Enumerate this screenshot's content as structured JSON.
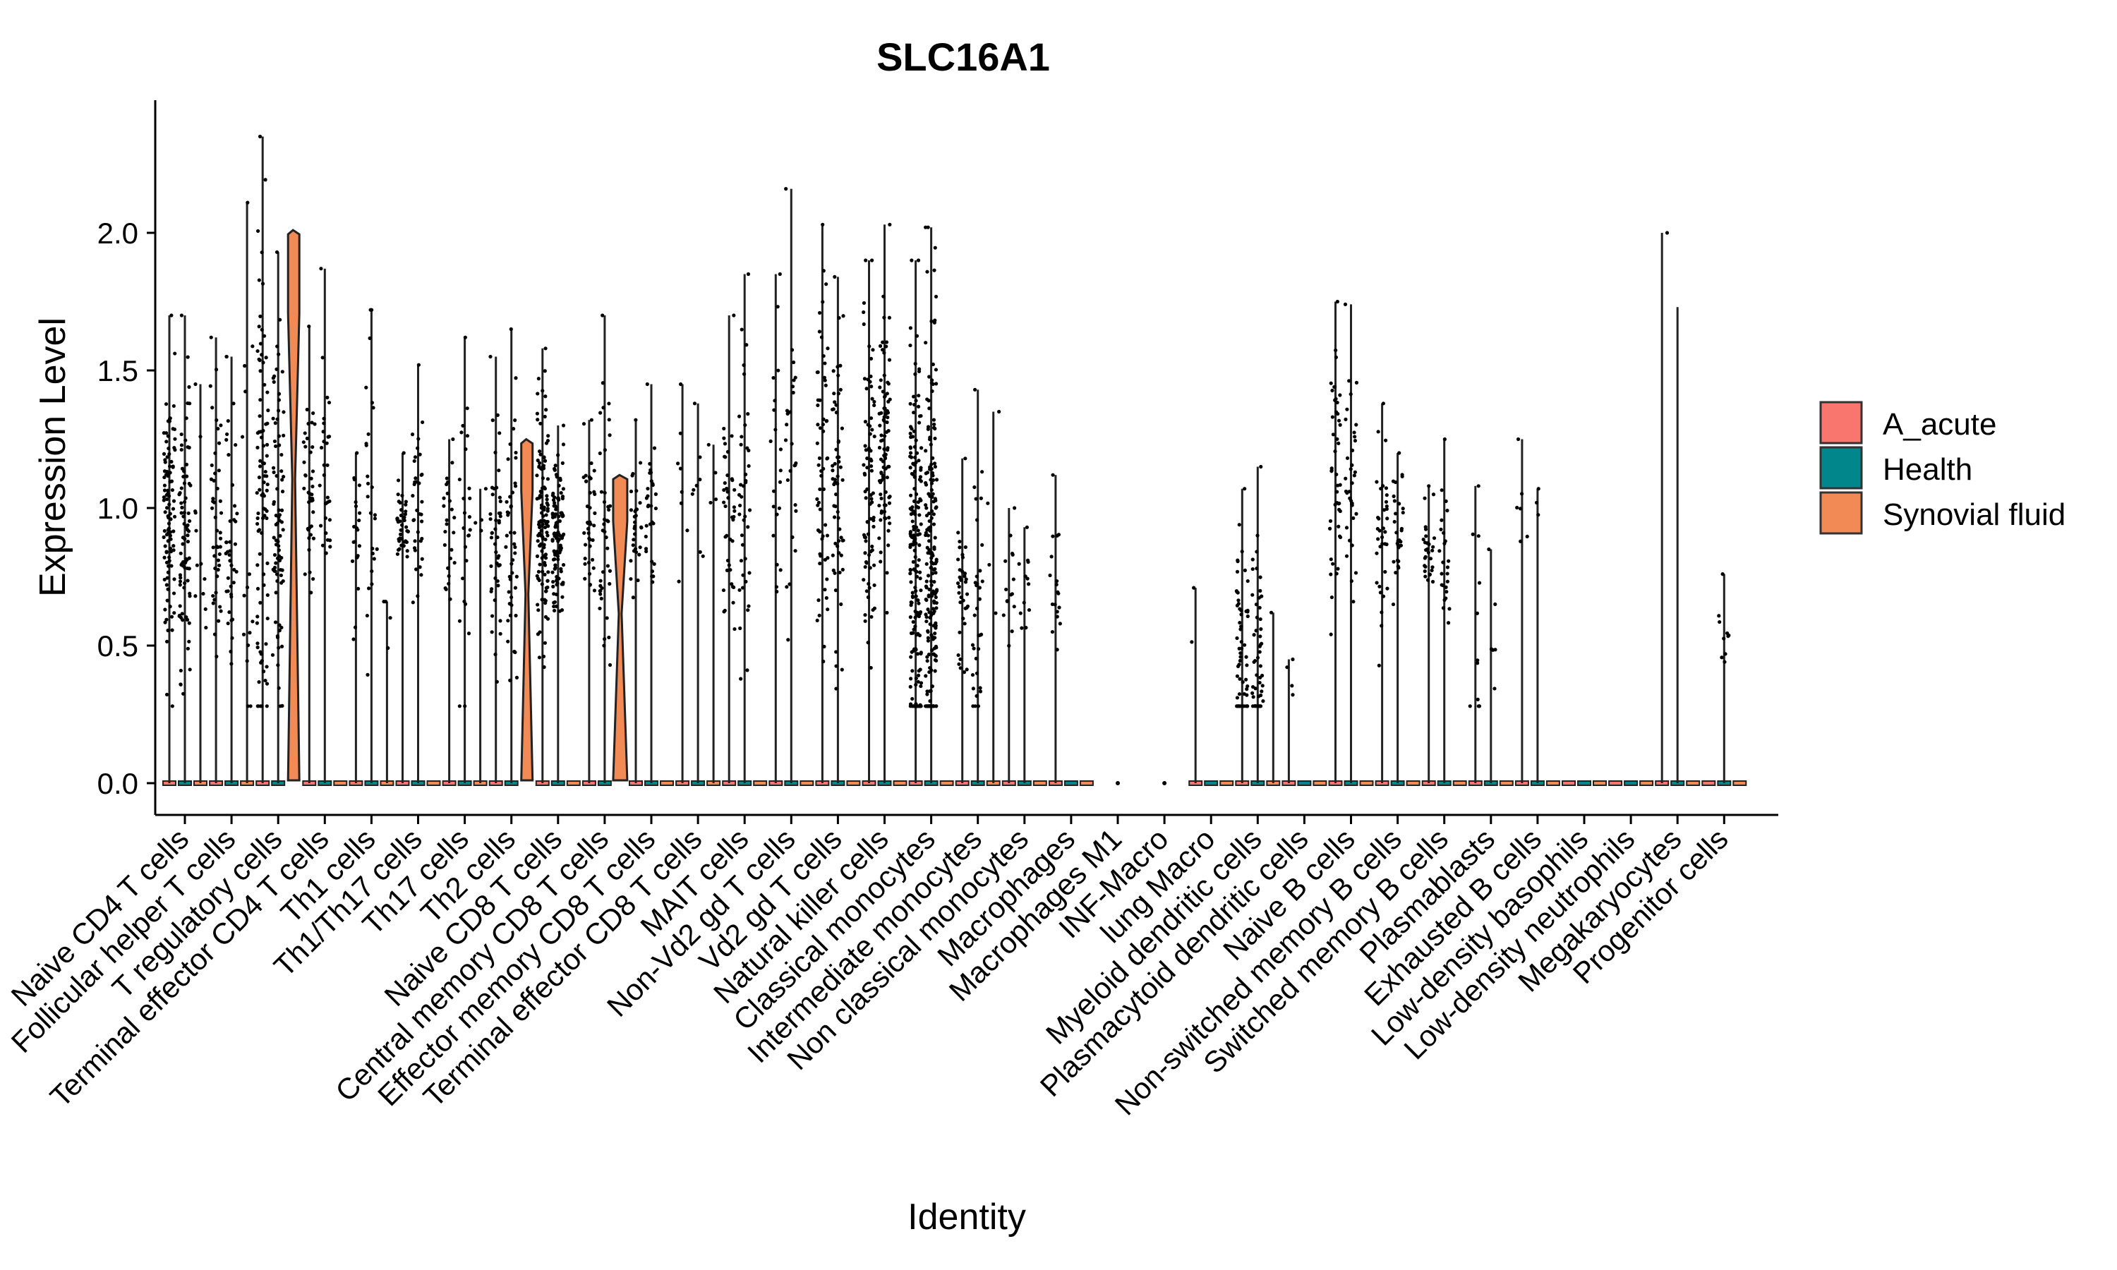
{
  "colors": {
    "A_acute": "#F8766D",
    "Health": "#00868B",
    "Synovial fluid": "#F28A55",
    "outline": "#222222"
  },
  "chart_data": {
    "type": "violin",
    "title": "SLC16A1",
    "xlabel": "Identity",
    "ylabel": "Expression Level",
    "ylim": [
      -0.1,
      2.45
    ],
    "yticks": [
      0.0,
      0.5,
      1.0,
      1.5,
      2.0
    ],
    "ytick_labels": [
      "0.0",
      "0.5",
      "1.0",
      "1.5",
      "2.0"
    ],
    "legend": {
      "position": "right",
      "entries": [
        "A_acute",
        "Health",
        "Synovial fluid"
      ]
    },
    "categories": [
      "Naive CD4 T cells",
      "Follicular helper T cells",
      "T regulatory cells",
      "Terminal effector CD4 T cells",
      "Th1 cells",
      "Th1/Th17 cells",
      "Th17 cells",
      "Th2 cells",
      "Naive CD8 T cells",
      "Central memory CD8 T cells",
      "Effector memory CD8 T cells",
      "Terminal effector CD8 T cells",
      "MAIT cells",
      "Non-Vd2 gd T cells",
      "Vd2 gd T cells",
      "Natural killer cells",
      "Classical monocytes",
      "Intermediate monocytes",
      "Non classical monocytes",
      "Macrophages",
      "Macrophages M1",
      "INF-Macro",
      "lung Macro",
      "Myeloid dendritic cells",
      "Plasmacytoid dendritic cells",
      "Naive B cells",
      "Non-switched memory B cells",
      "Switched memory B cells",
      "Plasmablasts",
      "Exhausted B cells",
      "Low-density basophils",
      "Low-density neutrophils",
      "Megakaryocytes",
      "Progenitor cells"
    ],
    "series": [
      {
        "name": "A_acute",
        "max": [
          1.7,
          1.62,
          2.35,
          1.66,
          1.2,
          1.2,
          1.25,
          1.55,
          1.58,
          1.32,
          1.32,
          1.45,
          1.7,
          1.85,
          2.03,
          1.9,
          1.9,
          1.18,
          1.0,
          1.12,
          0,
          0,
          0.71,
          1.07,
          0.45,
          1.75,
          1.38,
          1.08,
          1.08,
          1.25,
          0,
          0,
          2.0,
          0
        ],
        "center": [
          0.95,
          0.9,
          1.05,
          1.1,
          0.85,
          0.95,
          0.9,
          0.9,
          0.9,
          0.9,
          0.95,
          1.0,
          1.0,
          1.15,
          1.1,
          1.1,
          0.8,
          0.7,
          0.7,
          0.7,
          0,
          0,
          0.43,
          0.5,
          0.4,
          1.1,
          0.9,
          0.85,
          0.4,
          0.9,
          0,
          0,
          0.85,
          0
        ],
        "n": [
          100,
          45,
          90,
          40,
          20,
          40,
          25,
          45,
          120,
          40,
          30,
          8,
          40,
          20,
          60,
          80,
          180,
          35,
          15,
          18,
          0,
          0,
          2,
          60,
          4,
          45,
          35,
          30,
          12,
          6,
          0,
          0,
          1,
          0
        ]
      },
      {
        "name": "Health",
        "max": [
          1.7,
          1.55,
          1.93,
          1.87,
          1.72,
          1.52,
          1.62,
          1.65,
          1.3,
          1.7,
          1.45,
          1.38,
          1.85,
          2.16,
          1.84,
          2.03,
          2.02,
          1.43,
          0.93,
          0,
          0,
          0,
          0,
          1.15,
          0,
          1.74,
          1.2,
          1.25,
          0.85,
          1.07,
          0,
          0,
          1.73,
          0.76
        ],
        "center": [
          0.95,
          0.9,
          1.0,
          1.1,
          0.9,
          0.95,
          0.85,
          0.9,
          0.9,
          0.9,
          0.95,
          1.0,
          1.0,
          1.15,
          1.05,
          1.25,
          0.8,
          0.65,
          0.7,
          0,
          0,
          0,
          0,
          0.5,
          0,
          1.1,
          0.9,
          0.85,
          0.45,
          1.0,
          0,
          0,
          0,
          0.5
        ],
        "n": [
          80,
          40,
          80,
          30,
          25,
          35,
          25,
          45,
          110,
          40,
          30,
          8,
          40,
          25,
          60,
          90,
          200,
          35,
          12,
          0,
          0,
          0,
          0,
          50,
          0,
          35,
          30,
          25,
          6,
          3,
          0,
          0,
          0,
          10
        ]
      },
      {
        "name": "Synovial fluid",
        "max": [
          1.45,
          2.11,
          2.01,
          0,
          0.66,
          0,
          1.07,
          1.25,
          0,
          1.12,
          0,
          1.23,
          0,
          0,
          0,
          0,
          0,
          1.35,
          0,
          0,
          0,
          0,
          0,
          0.62,
          0,
          0,
          0,
          0,
          0,
          0,
          0,
          0,
          0,
          0
        ],
        "center": [
          0.9,
          0.9,
          1.0,
          0,
          0.5,
          0,
          0.9,
          0.9,
          0,
          1.0,
          0,
          1.1,
          0,
          0,
          0,
          0,
          0,
          0.7,
          0,
          0,
          0,
          0,
          0,
          0.5,
          0,
          0,
          0,
          0,
          0,
          0,
          0,
          0,
          0,
          0
        ],
        "n": [
          12,
          15,
          0,
          0,
          4,
          0,
          4,
          0,
          0,
          0,
          0,
          4,
          0,
          0,
          0,
          0,
          0,
          4,
          0,
          0,
          0,
          0,
          0,
          1,
          0,
          0,
          0,
          0,
          0,
          0,
          0,
          0,
          0,
          0
        ],
        "filled_body": [
          false,
          false,
          true,
          false,
          false,
          false,
          false,
          true,
          false,
          true,
          false,
          false,
          false,
          false,
          false,
          false,
          false,
          false,
          false,
          false,
          false,
          false,
          false,
          false,
          false,
          false,
          false,
          false,
          false,
          false,
          false,
          false,
          false,
          false
        ]
      }
    ],
    "isolated_points": [
      {
        "category": "Macrophages M1",
        "value": 0.0
      },
      {
        "category": "INF-Macro",
        "value": 0.0
      }
    ]
  }
}
